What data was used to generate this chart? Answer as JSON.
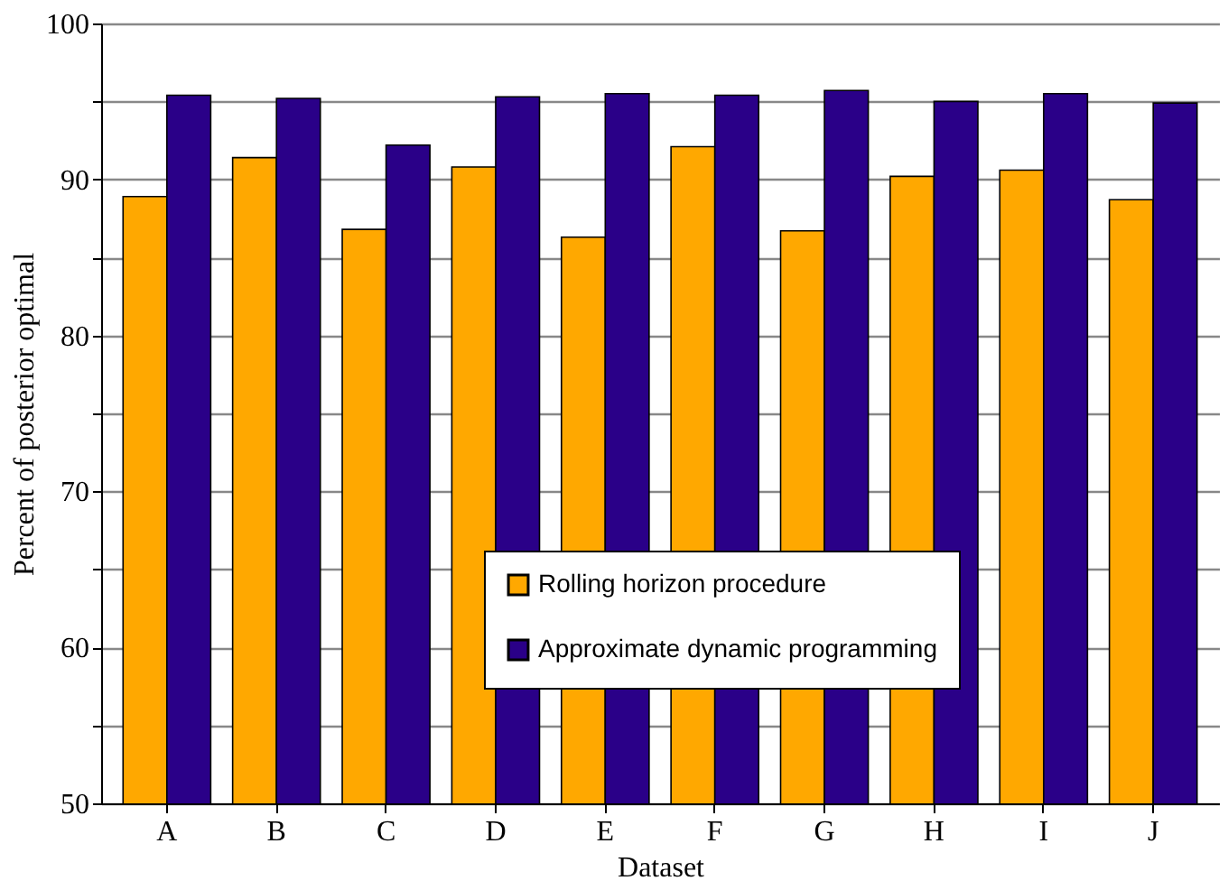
{
  "chart_data": {
    "type": "bar",
    "xlabel": "Dataset",
    "ylabel": "Percent of posterior optimal",
    "categories": [
      "A",
      "B",
      "C",
      "D",
      "E",
      "F",
      "G",
      "H",
      "I",
      "J"
    ],
    "series": [
      {
        "name": "Rolling horizon procedure",
        "color": "#ffa800",
        "values": [
          88.9,
          91.4,
          86.8,
          90.8,
          86.3,
          92.1,
          86.7,
          90.2,
          90.6,
          88.7
        ]
      },
      {
        "name": "Approximate dynamic programming",
        "color": "#2a0088",
        "values": [
          95.4,
          95.2,
          92.2,
          95.3,
          95.5,
          95.4,
          95.7,
          95.0,
          95.5,
          94.9
        ]
      }
    ],
    "ylim": [
      50,
      100
    ],
    "yticks": [
      50,
      60,
      70,
      80,
      90,
      100
    ],
    "grid": "y",
    "legend": "bottom right"
  }
}
